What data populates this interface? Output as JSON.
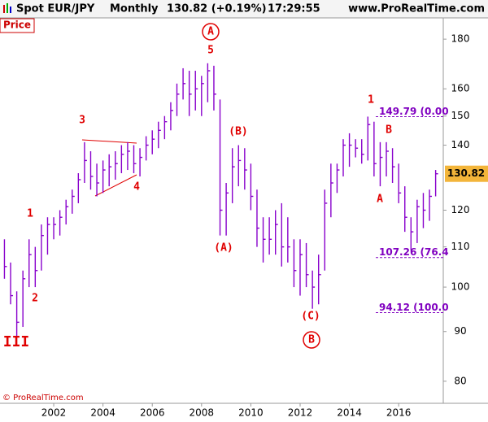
{
  "header": {
    "instrument": "Spot EUR/JPY",
    "period": "Monthly",
    "change": "130.82 (+0.19%)",
    "time": "17:29:55",
    "site": "www.ProRealTime.com"
  },
  "footer": "© ProRealTime.com",
  "chart_data": {
    "type": "ohlc",
    "label": "Price",
    "color": "#8800cc",
    "log_scale": true,
    "xlim": [
      1999.82,
      2017.81
    ],
    "xticks": [
      2002,
      2004,
      2006,
      2008,
      2010,
      2012,
      2014,
      2016
    ],
    "ylim": [
      78.3,
      189.3
    ],
    "yticks": [
      80,
      90,
      100,
      110,
      120,
      140,
      150,
      160,
      180
    ],
    "x": [
      2000.0,
      2000.25,
      2000.5,
      2000.75,
      2001.0,
      2001.25,
      2001.5,
      2001.75,
      2002.0,
      2002.25,
      2002.5,
      2002.75,
      2003.0,
      2003.25,
      2003.5,
      2003.75,
      2004.0,
      2004.25,
      2004.5,
      2004.75,
      2005.0,
      2005.25,
      2005.5,
      2005.75,
      2006.0,
      2006.25,
      2006.5,
      2006.75,
      2007.0,
      2007.25,
      2007.5,
      2007.75,
      2008.0,
      2008.25,
      2008.5,
      2008.75,
      2009.0,
      2009.25,
      2009.5,
      2009.75,
      2010.0,
      2010.25,
      2010.5,
      2010.75,
      2011.0,
      2011.25,
      2011.5,
      2011.75,
      2012.0,
      2012.25,
      2012.5,
      2012.75,
      2013.0,
      2013.25,
      2013.5,
      2013.75,
      2014.0,
      2014.25,
      2014.5,
      2014.75,
      2015.0,
      2015.25,
      2015.5,
      2015.75,
      2016.0,
      2016.25,
      2016.5,
      2016.75,
      2017.0,
      2017.25,
      2017.5
    ],
    "high": [
      112,
      106,
      99,
      104,
      112,
      110,
      116,
      118,
      118,
      120,
      123,
      126,
      131,
      141,
      138,
      134,
      135,
      137,
      138,
      140,
      141,
      140,
      139,
      143,
      145,
      148,
      150,
      155,
      162,
      168,
      167,
      167,
      165,
      170,
      169,
      156,
      128,
      139,
      140,
      139,
      134,
      126,
      118,
      118,
      120,
      122,
      118,
      112,
      112,
      111,
      104,
      108,
      126,
      134,
      134,
      142,
      144,
      142,
      142,
      149.8,
      148,
      141,
      141,
      139,
      134,
      127,
      118,
      123,
      125,
      126,
      132
    ],
    "low": [
      102,
      96,
      89,
      91,
      100,
      100,
      104,
      108,
      112,
      113,
      116,
      119,
      122,
      128,
      126,
      124,
      125,
      127,
      129,
      131,
      132,
      131,
      130,
      135,
      137,
      139,
      142,
      145,
      150,
      156,
      150,
      152,
      150,
      155,
      152,
      113,
      113,
      122,
      127,
      126,
      120,
      110,
      106,
      108,
      108,
      105,
      106,
      100,
      98,
      100,
      95,
      96,
      104,
      118,
      125,
      130,
      133,
      136,
      134,
      135,
      130,
      127,
      130,
      128,
      122,
      114,
      109,
      111,
      115,
      117,
      124
    ],
    "close": [
      105,
      98,
      92,
      102,
      108,
      104,
      113,
      116,
      116,
      118,
      121,
      124,
      129,
      135,
      130,
      128,
      132,
      133,
      134,
      137,
      138,
      134,
      136,
      140,
      142,
      145,
      148,
      152,
      158,
      162,
      158,
      160,
      162,
      167,
      158,
      120,
      125,
      133,
      135,
      132,
      124,
      115,
      112,
      112,
      116,
      110,
      110,
      104,
      108,
      103,
      100,
      103,
      122,
      128,
      132,
      140,
      140,
      139,
      137,
      147,
      134,
      136,
      138,
      133,
      125,
      118,
      114,
      121,
      120,
      124,
      130.82
    ],
    "levels": [
      {
        "value": 149.79,
        "label": "149.79 (0.00"
      },
      {
        "value": 107.26,
        "label": "107.26 (76.4"
      },
      {
        "value": 94.12,
        "label": "94.12 (100.0"
      }
    ],
    "annotations": [
      "A",
      "5",
      "3",
      "4",
      "1",
      "2",
      "III",
      "(B)",
      "(A)",
      "(C)",
      "B",
      "1",
      "B",
      "A"
    ]
  }
}
